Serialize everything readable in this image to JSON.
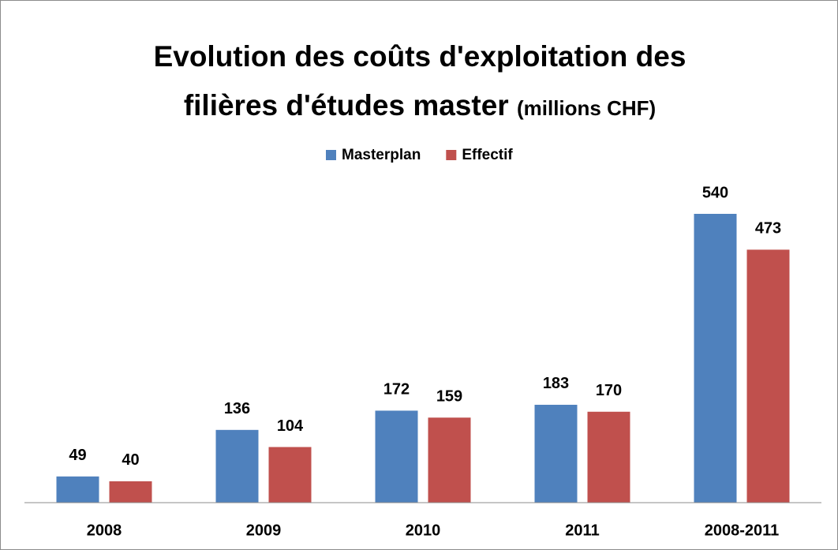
{
  "chart_data": {
    "type": "bar",
    "title": "Evolution des coûts d'exploitation des filières d'études master",
    "subtitle": "(millions CHF)",
    "categories": [
      "2008",
      "2009",
      "2010",
      "2011",
      "2008-2011"
    ],
    "series": [
      {
        "name": "Masterplan",
        "color": "#4f81bd",
        "values": [
          49,
          136,
          172,
          183,
          540
        ]
      },
      {
        "name": "Effectif",
        "color": "#c0504d",
        "values": [
          40,
          104,
          159,
          170,
          473
        ]
      }
    ],
    "legend": "top"
  }
}
